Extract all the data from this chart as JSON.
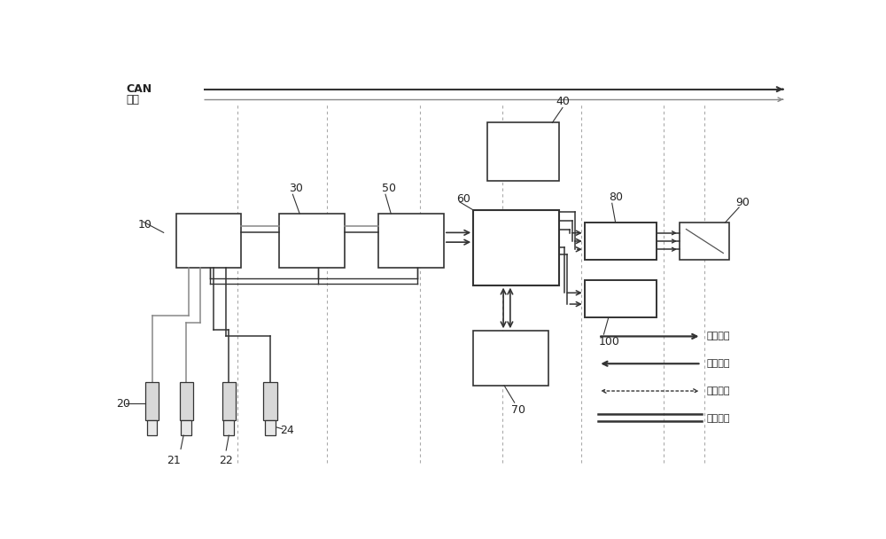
{
  "bg_color": "#ffffff",
  "lc": "#555555",
  "lc_dark": "#333333",
  "lc_gray": "#888888",
  "sensor_fill": "#d8d8d8",
  "sensor_fill2": "#e8e8e8",
  "figsize": [
    10.0,
    6.08
  ],
  "dpi": 100,
  "labels": {
    "CAN": "CAN",
    "tongxun": "通讯",
    "gaoya1": "高压线束",
    "gaoya2": "高压线束",
    "tongxun_line": "通讯线束",
    "yingxian": "硬线信号",
    "n10": "10",
    "n20": "20",
    "n21": "21",
    "n22": "22",
    "n24": "24",
    "n30": "30",
    "n40": "40",
    "n50": "50",
    "n60": "60",
    "n70": "70",
    "n80": "80",
    "n90": "90",
    "n100": "100"
  }
}
